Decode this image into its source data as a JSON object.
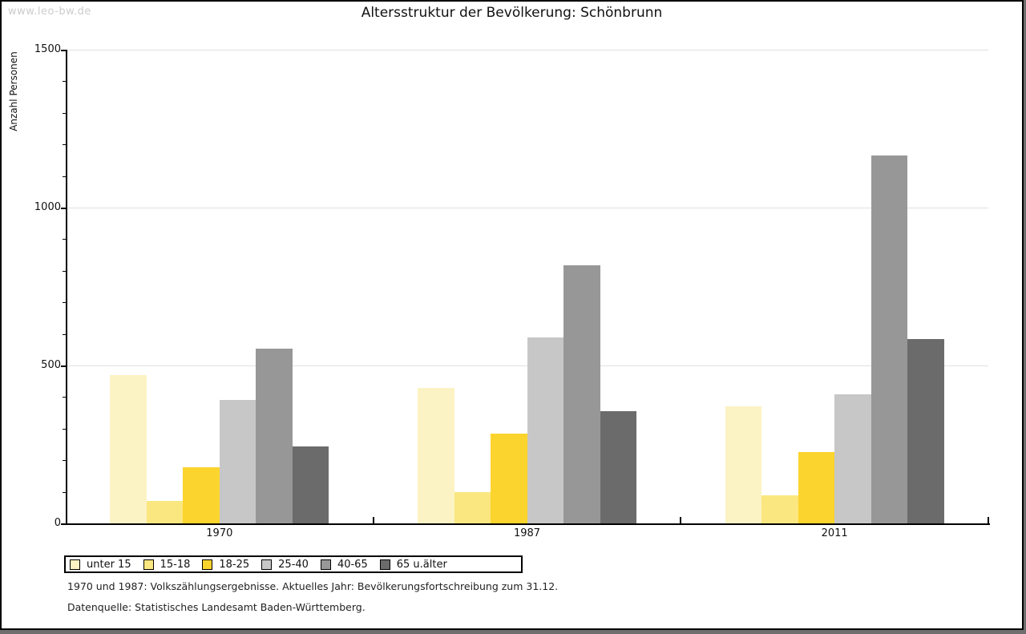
{
  "watermark": "www.leo-bw.de",
  "title": "Altersstruktur der Bevölkerung: Schönbrunn",
  "footnotes": {
    "line1": "1970 und 1987: Volkszählungsergebnisse. Aktuelles Jahr: Bevölkerungsfortschreibung zum 31.12.",
    "line2": "Datenquelle: Statistisches Landesamt Baden-Württemberg."
  },
  "chart_data": {
    "type": "bar",
    "title": "Altersstruktur der Bevölkerung: Schönbrunn",
    "ylabel": "Anzahl Personen",
    "xlabel": "",
    "categories": [
      "1970",
      "1987",
      "2011"
    ],
    "series": [
      {
        "name": "unter 15",
        "color": "#FBF3C3",
        "values": [
          470,
          430,
          370
        ]
      },
      {
        "name": "15-18",
        "color": "#FBE77F",
        "values": [
          70,
          100,
          90
        ]
      },
      {
        "name": "18-25",
        "color": "#FCD42E",
        "values": [
          178,
          285,
          225
        ]
      },
      {
        "name": "25-40",
        "color": "#C7C7C7",
        "values": [
          390,
          590,
          408
        ]
      },
      {
        "name": "40-65",
        "color": "#979797",
        "values": [
          553,
          818,
          1165
        ]
      },
      {
        "name": "65 u.älter",
        "color": "#6B6B6B",
        "values": [
          243,
          355,
          585
        ]
      }
    ],
    "ylim": [
      0,
      1500
    ],
    "yticks": [
      0,
      500,
      1000,
      1500
    ],
    "minor_tick_step": 100,
    "grid": true,
    "legend_position": "bottom",
    "axis_color": "#000000",
    "grid_color": "#e0e0e0"
  }
}
